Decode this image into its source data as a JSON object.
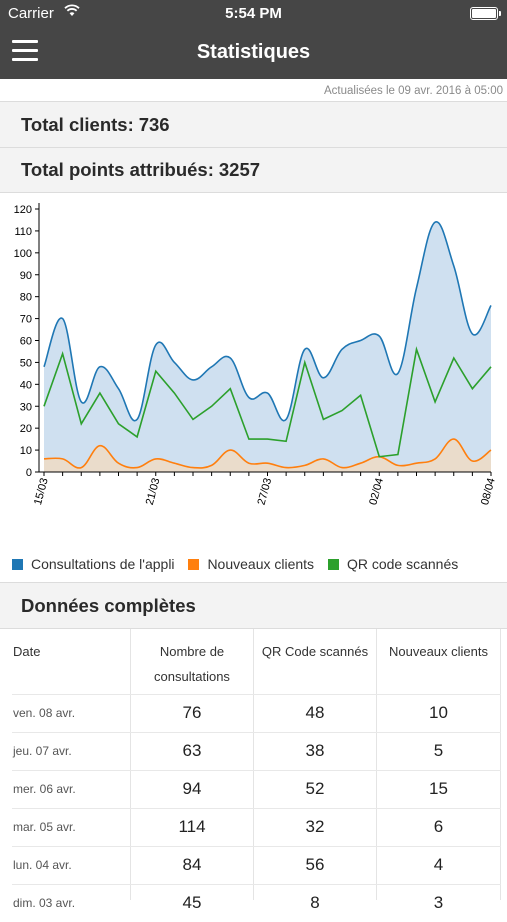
{
  "status_bar": {
    "carrier": "Carrier",
    "time": "5:54 PM"
  },
  "nav": {
    "title": "Statistiques"
  },
  "updated": "Actualisées le 09 avr. 2016 à 05:00",
  "totals": {
    "clients_label": "Total clients:",
    "clients_value": "736",
    "points_label": "Total points attribués:",
    "points_value": "3257"
  },
  "colors": {
    "consultations": "#1f77b4",
    "nouveaux": "#ff7f0e",
    "qr": "#2ca02c"
  },
  "chart_data": {
    "type": "area",
    "ylim": [
      0,
      120
    ],
    "yticks": [
      0,
      10,
      20,
      30,
      40,
      50,
      60,
      70,
      80,
      90,
      100,
      110,
      120
    ],
    "x_tick_labels": [
      "15/03",
      "21/03",
      "27/03",
      "02/04",
      "08/04"
    ],
    "x": [
      "15/03",
      "16/03",
      "17/03",
      "18/03",
      "19/03",
      "20/03",
      "21/03",
      "22/03",
      "23/03",
      "24/03",
      "25/03",
      "26/03",
      "27/03",
      "28/03",
      "29/03",
      "30/03",
      "31/03",
      "01/04",
      "02/04",
      "03/04",
      "04/04",
      "05/04",
      "06/04",
      "07/04",
      "08/04"
    ],
    "series": [
      {
        "name": "Consultations de l'appli",
        "color": "#1f77b4",
        "values": [
          48,
          70,
          32,
          48,
          38,
          24,
          58,
          50,
          42,
          48,
          52,
          34,
          36,
          24,
          56,
          43,
          56,
          60,
          62,
          45,
          84,
          114,
          94,
          63,
          76
        ]
      },
      {
        "name": "Nouveaux clients",
        "color": "#ff7f0e",
        "values": [
          6,
          6,
          2,
          12,
          4,
          2,
          6,
          4,
          2,
          3,
          10,
          4,
          4,
          2,
          3,
          6,
          2,
          4,
          7,
          3,
          4,
          6,
          15,
          5,
          10
        ]
      },
      {
        "name": "QR code scannés",
        "color": "#2ca02c",
        "values": [
          30,
          54,
          22,
          36,
          22,
          16,
          46,
          36,
          24,
          30,
          38,
          15,
          15,
          14,
          50,
          24,
          28,
          35,
          7,
          8,
          56,
          32,
          52,
          38,
          48
        ]
      }
    ]
  },
  "section_title": "Données complètes",
  "table": {
    "headers": [
      "Date",
      "Nombre de consultations",
      "QR Code scannés",
      "Nouveaux clients"
    ],
    "rows": [
      {
        "date": "ven. 08 avr.",
        "consultations": "76",
        "qr": "48",
        "nouveaux": "10"
      },
      {
        "date": "jeu. 07 avr.",
        "consultations": "63",
        "qr": "38",
        "nouveaux": "5"
      },
      {
        "date": "mer. 06 avr.",
        "consultations": "94",
        "qr": "52",
        "nouveaux": "15"
      },
      {
        "date": "mar. 05 avr.",
        "consultations": "114",
        "qr": "32",
        "nouveaux": "6"
      },
      {
        "date": "lun. 04 avr.",
        "consultations": "84",
        "qr": "56",
        "nouveaux": "4"
      },
      {
        "date": "dim. 03 avr.",
        "consultations": "45",
        "qr": "8",
        "nouveaux": "3"
      }
    ]
  }
}
